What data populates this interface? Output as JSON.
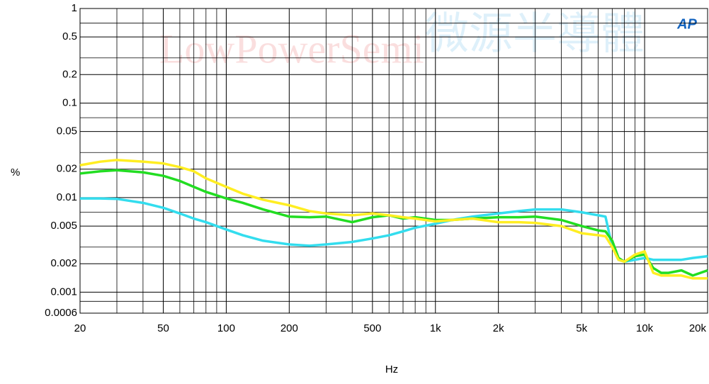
{
  "chart_data": {
    "type": "line",
    "y_label": "%",
    "x_label": "Hz",
    "watermarks": [
      "LowPowerSemi",
      "微源半導體"
    ],
    "logo": "AP",
    "log_x": true,
    "log_y": true,
    "grid": true,
    "xlim": [
      20,
      20000
    ],
    "ylim": [
      0.0006,
      1
    ],
    "xticks": [
      20,
      50,
      100,
      200,
      500,
      {
        "value": 1000,
        "label": "1k"
      },
      {
        "value": 2000,
        "label": "2k"
      },
      {
        "value": 5000,
        "label": "5k"
      },
      {
        "value": 10000,
        "label": "10k"
      },
      {
        "value": 20000,
        "label": "20k"
      }
    ],
    "yticks": [
      1,
      0.5,
      0.2,
      0.1,
      0.05,
      0.02,
      0.01,
      0.005,
      0.002,
      0.001,
      0.0006
    ],
    "x_minor_grid": [
      30,
      40,
      60,
      70,
      80,
      90,
      300,
      400,
      600,
      700,
      800,
      900,
      3000,
      4000,
      6000,
      7000,
      8000,
      9000
    ],
    "y_minor_grid": [
      0.7,
      0.3,
      0.07,
      0.03,
      0.007,
      0.003,
      0.0008
    ],
    "x": [
      20,
      25,
      30,
      40,
      50,
      60,
      70,
      80,
      100,
      120,
      150,
      200,
      250,
      300,
      400,
      500,
      600,
      700,
      800,
      1000,
      1200,
      1500,
      2000,
      2500,
      3000,
      4000,
      5000,
      6000,
      6500,
      7000,
      7500,
      8000,
      9000,
      10000,
      11000,
      12000,
      13000,
      15000,
      17000,
      20000
    ],
    "series": [
      {
        "name": "cyan",
        "color": "#33ddee",
        "values": [
          0.0098,
          0.0098,
          0.0097,
          0.0088,
          0.0078,
          0.0068,
          0.006,
          0.0055,
          0.0046,
          0.004,
          0.0035,
          0.0032,
          0.0031,
          0.0032,
          0.0034,
          0.0037,
          0.004,
          0.0044,
          0.0048,
          0.0053,
          0.0058,
          0.0063,
          0.0068,
          0.0072,
          0.0075,
          0.0075,
          0.007,
          0.0065,
          0.0063,
          0.003,
          0.0022,
          0.0021,
          0.0022,
          0.0023,
          0.0022,
          0.0022,
          0.0022,
          0.0022,
          0.0023,
          0.0024
        ]
      },
      {
        "name": "green",
        "color": "#22dd22",
        "values": [
          0.018,
          0.019,
          0.0195,
          0.0185,
          0.017,
          0.015,
          0.013,
          0.0115,
          0.0098,
          0.0088,
          0.0075,
          0.0063,
          0.0062,
          0.0063,
          0.0055,
          0.0062,
          0.0065,
          0.006,
          0.0062,
          0.0058,
          0.0058,
          0.006,
          0.0062,
          0.0062,
          0.0063,
          0.0058,
          0.005,
          0.0045,
          0.0044,
          0.0035,
          0.0023,
          0.0021,
          0.0024,
          0.0025,
          0.0018,
          0.0016,
          0.0016,
          0.0017,
          0.0015,
          0.0017
        ]
      },
      {
        "name": "yellow",
        "color": "#ffee22",
        "values": [
          0.022,
          0.024,
          0.025,
          0.024,
          0.023,
          0.021,
          0.019,
          0.016,
          0.013,
          0.011,
          0.0095,
          0.0083,
          0.0072,
          0.0068,
          0.0065,
          0.0068,
          0.0065,
          0.0062,
          0.006,
          0.0056,
          0.0058,
          0.006,
          0.0055,
          0.0055,
          0.0054,
          0.005,
          0.0042,
          0.004,
          0.0039,
          0.003,
          0.0022,
          0.0021,
          0.0025,
          0.0027,
          0.0016,
          0.0015,
          0.0015,
          0.0015,
          0.0014,
          0.0014
        ]
      }
    ]
  }
}
